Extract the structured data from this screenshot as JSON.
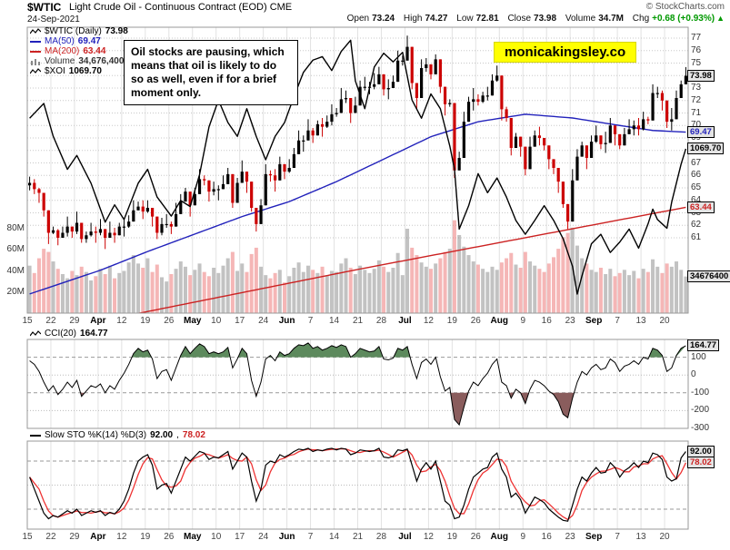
{
  "header": {
    "symbol": "$WTIC",
    "title": "Light Crude Oil - Continuous Contract (EOD) CME",
    "copyright": "© StockCharts.com",
    "date": "24-Sep-2021",
    "quote": {
      "open_label": "Open",
      "open": "73.24",
      "high_label": "High",
      "high": "74.27",
      "low_label": "Low",
      "low": "72.81",
      "close_label": "Close",
      "close": "73.98",
      "volume_label": "Volume",
      "volume": "34.7M",
      "chg_label": "Chg",
      "chg": "+0.68 (+0.93%)",
      "chg_arrow": "▲"
    }
  },
  "annotation": {
    "text": "Oil stocks are pausing, which means that oil is likely to do so as well, even if for a brief moment only."
  },
  "badge": {
    "text": "monicakingsley.co",
    "bg": "#ffff00"
  },
  "legend": {
    "main_rows": [
      {
        "name": "wtic",
        "label": "$WTIC (Daily)",
        "value": "73.98",
        "color": "#000000",
        "marker": "zigzag"
      },
      {
        "name": "ma50",
        "label": "MA(50)",
        "value": "69.47",
        "color": "#2222bb",
        "marker": "line"
      },
      {
        "name": "ma200",
        "label": "MA(200)",
        "value": "63.44",
        "color": "#cc2222",
        "marker": "line"
      },
      {
        "name": "volume",
        "label": "Volume",
        "value": "34,676,400",
        "color": "#333333",
        "marker": "bars"
      },
      {
        "name": "xoi",
        "label": "$XOI",
        "value": "1069.70",
        "color": "#000000",
        "marker": "zigzag"
      }
    ],
    "cci": {
      "label": "CCI(20)",
      "value": "164.77"
    },
    "sto": {
      "label": "Slow STO %K(14) %D(3)",
      "k": "92.00",
      "d": "78.02"
    }
  },
  "chart_data": {
    "type": "candlestick",
    "title": "$WTIC Light Crude Oil - Continuous Contract (EOD) CME",
    "x_labels": [
      "15",
      "22",
      "29",
      "Apr",
      "12",
      "19",
      "26",
      "May",
      "10",
      "17",
      "24",
      "Jun",
      "7",
      "14",
      "21",
      "28",
      "Jul",
      "12",
      "19",
      "26",
      "Aug",
      "9",
      "16",
      "23",
      "Sep",
      "7",
      "13",
      "20"
    ],
    "bars_per_label": 5,
    "price_axis": {
      "range": [
        61,
        77
      ],
      "ticks": [
        77,
        76,
        75,
        74,
        73,
        72,
        71,
        70,
        69,
        68,
        67,
        66,
        65,
        64,
        63,
        62,
        61
      ]
    },
    "volume_axis": {
      "ticks": [
        {
          "label": "80M",
          "value": 80
        },
        {
          "label": "60M",
          "value": 60
        },
        {
          "label": "40M",
          "value": 40
        },
        {
          "label": "20M",
          "value": 20
        }
      ],
      "max": 80
    },
    "xoi_axis": {
      "range": [
        880,
        1210
      ]
    },
    "candles": {
      "first_open": 65.2,
      "open_rule": "previous_close",
      "wick_high_cycle": [
        0.5,
        0.8,
        0.4,
        0.9,
        0.6,
        0.3,
        0.7
      ],
      "wick_low_cycle": [
        0.6,
        0.4,
        0.8,
        0.5,
        0.9,
        0.3
      ],
      "close": [
        65.4,
        64.9,
        64.6,
        63.2,
        61.4,
        61.6,
        61.0,
        61.4,
        61.9,
        61.5,
        62.2,
        60.9,
        61.2,
        61.5,
        61.4,
        61.7,
        61.0,
        61.4,
        61.2,
        61.9,
        61.9,
        62.3,
        63.2,
        63.5,
        63.1,
        63.4,
        62.7,
        61.4,
        62.1,
        62.1,
        61.9,
        62.9,
        63.9,
        64.7,
        63.6,
        64.5,
        65.7,
        65.6,
        64.7,
        64.9,
        64.9,
        65.3,
        66.1,
        63.8,
        65.4,
        66.3,
        65.5,
        63.4,
        62.1,
        63.6,
        66.1,
        66.0,
        65.6,
        66.9,
        66.3,
        66.6,
        67.7,
        68.8,
        68.8,
        69.6,
        69.2,
        70.1,
        69.9,
        70.3,
        70.9,
        71.0,
        72.1,
        72.2,
        71.0,
        71.6,
        73.1,
        73.1,
        73.1,
        73.3,
        74.1,
        72.9,
        73.0,
        73.5,
        75.2,
        75.2,
        76.3,
        73.4,
        72.2,
        74.6,
        74.9,
        74.1,
        75.3,
        73.1,
        71.7,
        71.8,
        66.4,
        67.4,
        70.3,
        71.9,
        72.1,
        71.9,
        72.4,
        72.4,
        73.6,
        74.0,
        71.3,
        70.6,
        68.2,
        69.1,
        68.3,
        66.5,
        68.3,
        69.2,
        69.0,
        68.4,
        67.3,
        66.6,
        65.5,
        63.7,
        62.3,
        65.6,
        67.5,
        68.4,
        67.4,
        68.7,
        69.2,
        68.5,
        68.6,
        70.0,
        69.3,
        68.4,
        69.3,
        69.7,
        70.0,
        69.7,
        70.5,
        70.4,
        72.6,
        72.6,
        72.0,
        70.3,
        70.5,
        72.2,
        73.3,
        73.98
      ]
    },
    "volume_millions": [
      45,
      38,
      52,
      61,
      58,
      49,
      42,
      37,
      33,
      40,
      36,
      44,
      39,
      31,
      35,
      42,
      37,
      45,
      33,
      38,
      40,
      48,
      55,
      47,
      43,
      52,
      39,
      46,
      34,
      30,
      37,
      42,
      49,
      44,
      36,
      41,
      47,
      39,
      35,
      43,
      38,
      45,
      52,
      58,
      40,
      47,
      39,
      56,
      62,
      44,
      36,
      33,
      38,
      41,
      29,
      35,
      43,
      48,
      39,
      45,
      41,
      38,
      44,
      36,
      40,
      39,
      47,
      52,
      43,
      37,
      45,
      41,
      38,
      42,
      50,
      44,
      39,
      43,
      57,
      36,
      80,
      62,
      55,
      48,
      44,
      42,
      47,
      52,
      58,
      61,
      88,
      74,
      63,
      55,
      49,
      46,
      42,
      39,
      44,
      41,
      48,
      52,
      57,
      46,
      43,
      58,
      49,
      45,
      42,
      39,
      47,
      53,
      61,
      72,
      76,
      81,
      64,
      52,
      47,
      41,
      39,
      43,
      37,
      42,
      35,
      38,
      41,
      36,
      40,
      33,
      42,
      39,
      51,
      44,
      38,
      47,
      44,
      49,
      41,
      34.7
    ],
    "ma50": {
      "i": [
        0,
        15,
        25,
        35,
        45,
        55,
        65,
        75,
        85,
        95,
        105,
        115,
        125,
        132,
        139
      ],
      "v": [
        56.5,
        58.4,
        59.9,
        61.3,
        62.7,
        63.9,
        65.5,
        67.3,
        69.1,
        70.3,
        70.9,
        70.6,
        70.0,
        69.6,
        69.47
      ]
    },
    "ma200": {
      "i": [
        0,
        70,
        139
      ],
      "v": [
        53.2,
        58.5,
        63.44
      ]
    },
    "xoi": {
      "i": [
        0,
        3,
        5,
        8,
        10,
        13,
        16,
        18,
        20,
        23,
        25,
        27,
        30,
        32,
        34,
        36,
        38,
        40,
        42,
        44,
        46,
        48,
        50,
        52,
        54,
        56,
        58,
        60,
        62,
        64,
        66,
        68,
        69,
        71,
        73,
        75,
        77,
        79,
        81,
        83,
        85,
        87,
        89,
        90,
        91,
        93,
        95,
        97,
        99,
        101,
        103,
        105,
        107,
        109,
        111,
        113,
        115,
        116,
        117,
        119,
        121,
        123,
        125,
        127,
        129,
        131,
        132,
        133,
        135,
        136,
        137,
        138,
        139
      ],
      "v": [
        1105,
        1122,
        1084,
        1046,
        1062,
        1030,
        985,
        1005,
        988,
        1030,
        1046,
        1014,
        992,
        1010,
        1003,
        1040,
        1095,
        1126,
        1100,
        1084,
        1116,
        1084,
        1057,
        1084,
        1100,
        1130,
        1158,
        1172,
        1176,
        1160,
        1182,
        1195,
        1148,
        1116,
        1164,
        1180,
        1170,
        1181,
        1126,
        1105,
        1133,
        1116,
        1073,
        1046,
        977,
        1004,
        1041,
        1019,
        1036,
        1014,
        987,
        971,
        987,
        1004,
        987,
        966,
        934,
        902,
        923,
        960,
        971,
        950,
        962,
        977,
        955,
        983,
        1000,
        988,
        978,
        1008,
        1030,
        1052,
        1069.7
      ]
    },
    "cci": {
      "ticks": [
        100,
        0,
        -100,
        -200,
        -300
      ],
      "range": [
        200,
        -300
      ],
      "fill_thresholds": {
        "high": 100,
        "low": -100
      },
      "values": [
        80,
        60,
        20,
        -40,
        -90,
        -60,
        -110,
        -80,
        -40,
        -70,
        -30,
        -120,
        -90,
        -60,
        -70,
        -50,
        -100,
        -60,
        -80,
        -30,
        10,
        60,
        120,
        150,
        130,
        140,
        90,
        -20,
        20,
        30,
        -30,
        40,
        110,
        160,
        120,
        150,
        175,
        160,
        120,
        130,
        120,
        130,
        155,
        40,
        90,
        150,
        120,
        -30,
        -120,
        -40,
        90,
        110,
        80,
        130,
        110,
        120,
        150,
        170,
        165,
        180,
        150,
        160,
        140,
        150,
        165,
        155,
        170,
        160,
        100,
        120,
        150,
        140,
        130,
        135,
        160,
        90,
        85,
        95,
        150,
        140,
        160,
        60,
        -20,
        70,
        90,
        60,
        100,
        -10,
        -90,
        -70,
        -250,
        -280,
        -180,
        -90,
        -40,
        -60,
        -20,
        10,
        60,
        90,
        -40,
        -60,
        -130,
        -80,
        -100,
        -160,
        -80,
        -30,
        -40,
        -60,
        -90,
        -110,
        -150,
        -220,
        -240,
        -130,
        -40,
        20,
        0,
        40,
        60,
        30,
        40,
        90,
        70,
        20,
        50,
        60,
        80,
        60,
        100,
        90,
        150,
        140,
        110,
        20,
        40,
        110,
        150,
        164.77
      ]
    },
    "sto": {
      "bands": [
        80,
        50,
        20
      ],
      "range": [
        105,
        -5
      ],
      "k": [
        60,
        45,
        30,
        15,
        8,
        12,
        10,
        14,
        18,
        15,
        20,
        12,
        15,
        18,
        16,
        18,
        12,
        16,
        14,
        20,
        30,
        45,
        65,
        80,
        85,
        88,
        75,
        45,
        50,
        52,
        40,
        55,
        70,
        85,
        80,
        86,
        92,
        90,
        82,
        85,
        84,
        88,
        92,
        70,
        80,
        90,
        85,
        55,
        30,
        45,
        75,
        80,
        78,
        88,
        85,
        88,
        92,
        95,
        94,
        96,
        92,
        94,
        93,
        95,
        96,
        94,
        96,
        95,
        88,
        90,
        94,
        93,
        92,
        93,
        96,
        85,
        84,
        86,
        94,
        93,
        95,
        75,
        55,
        70,
        78,
        70,
        80,
        55,
        30,
        25,
        8,
        10,
        25,
        45,
        60,
        65,
        70,
        72,
        85,
        90,
        70,
        60,
        35,
        40,
        32,
        15,
        25,
        35,
        32,
        28,
        20,
        15,
        10,
        6,
        5,
        25,
        45,
        60,
        55,
        65,
        72,
        65,
        66,
        78,
        72,
        60,
        68,
        72,
        78,
        72,
        80,
        78,
        90,
        88,
        82,
        60,
        55,
        58,
        84,
        92
      ],
      "d_rule": "3-bar SMA of %K"
    },
    "tags": [
      {
        "text": "73.98",
        "scale": "price",
        "value": 73.98,
        "color": "#000000"
      },
      {
        "text": "69.47",
        "scale": "price",
        "value": 69.47,
        "color": "#2222bb"
      },
      {
        "text": "1069.70",
        "scale": "xoi",
        "value": 1069.7,
        "color": "#000000"
      },
      {
        "text": "63.44",
        "scale": "price",
        "value": 63.44,
        "color": "#cc2222"
      },
      {
        "text": "34676400",
        "scale": "volume",
        "value": 34.68,
        "color": "#000000"
      },
      {
        "text": "164.77",
        "scale": "cci",
        "value": 164.77,
        "color": "#000000"
      },
      {
        "text": "92.00",
        "scale": "sto",
        "value": 92,
        "color": "#000000"
      },
      {
        "text": "78.02",
        "scale": "sto",
        "value": 78.02,
        "color": "#cc2222"
      }
    ],
    "colors": {
      "up": "#000000",
      "down": "#cc0000",
      "vol_up": "rgba(120,120,120,0.45)",
      "vol_down": "rgba(235,110,110,0.5)",
      "ma50": "#2222bb",
      "ma200": "#cc2222",
      "xoi": "#000000",
      "cci_line": "#000000",
      "cci_fill_hi": "#5d8a5d",
      "cci_fill_lo": "#8a5d5d",
      "sto_k": "#000000",
      "sto_d": "#ee3333",
      "grid_v": "#e2e2e2",
      "grid_h": "#c8c8c8",
      "border": "#999999"
    }
  }
}
